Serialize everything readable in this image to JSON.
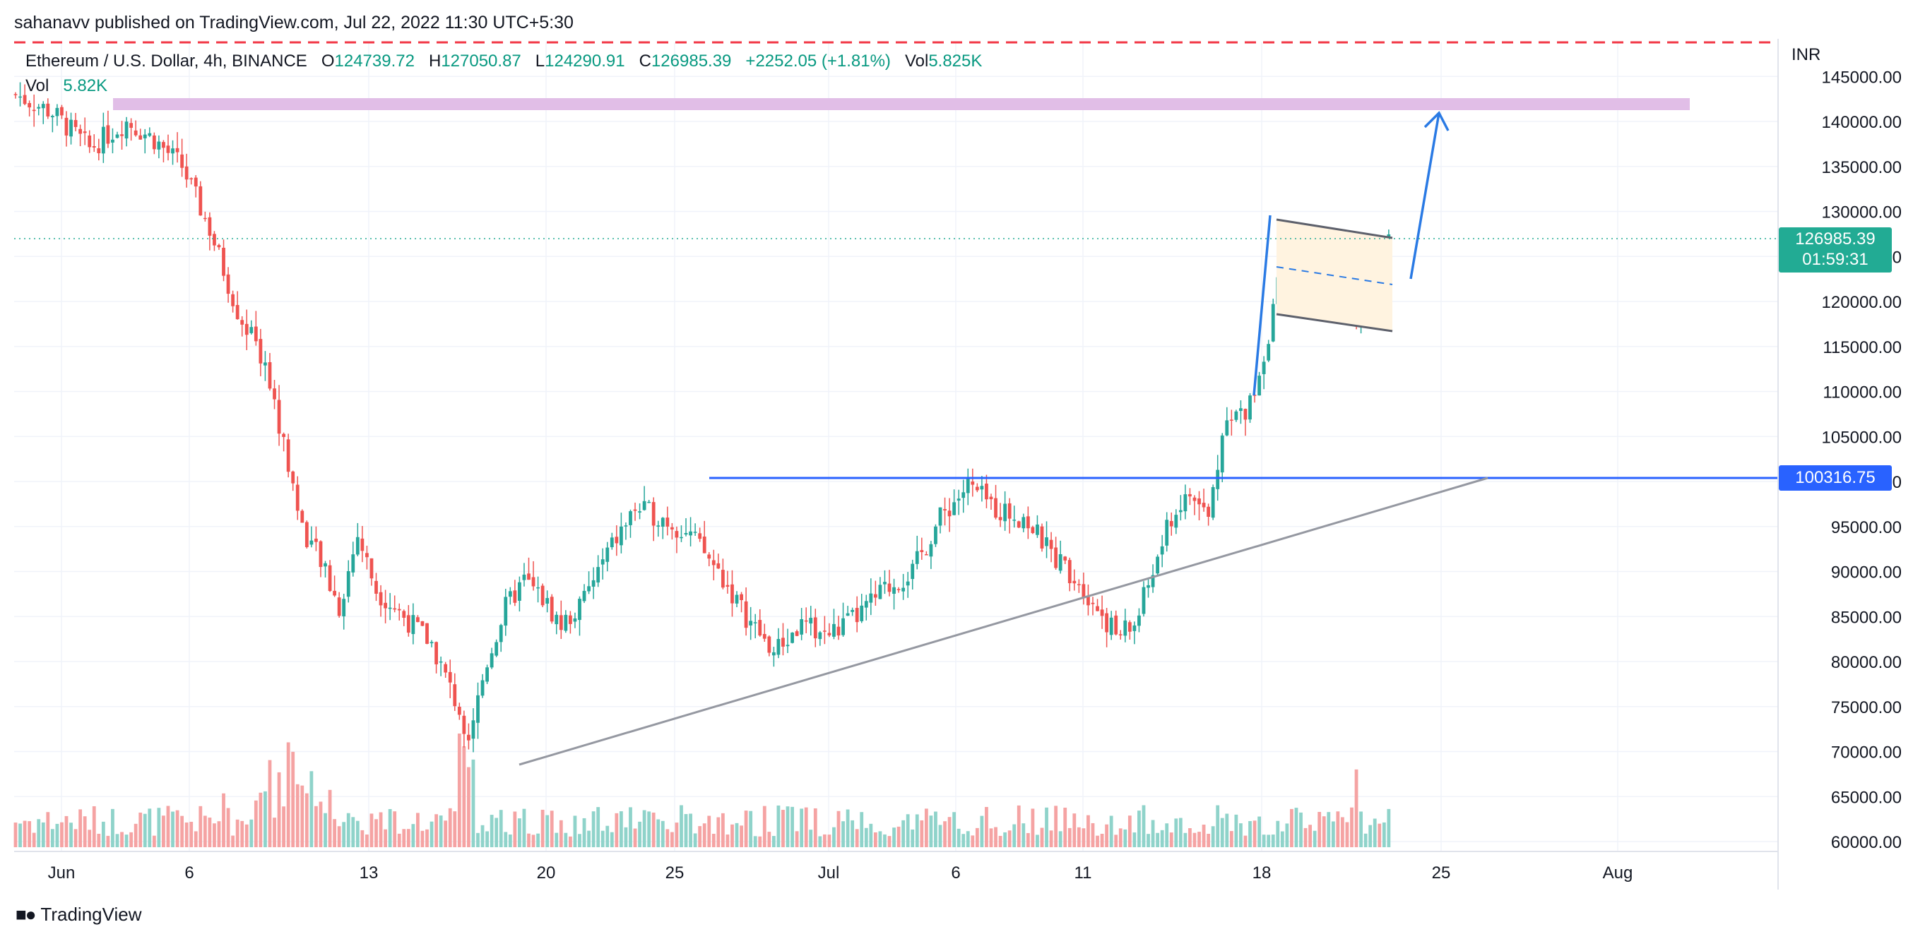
{
  "header": {
    "publisher": "sahanavv published on TradingView.com, Jul 22, 2022 11:30 UTC+5:30"
  },
  "legend": {
    "symbol": "Ethereum / U.S. Dollar, 4h, BINANCE",
    "open_label": "O",
    "open": "124739.72",
    "high_label": "H",
    "high": "127050.87",
    "low_label": "L",
    "low": "124290.91",
    "close_label": "C",
    "close": "126985.39",
    "change": "+2252.05 (+1.81%)",
    "vol_label": "Vol",
    "vol": "5.825K",
    "vol_series_label": "Vol",
    "vol_series_value": "5.82K"
  },
  "price_axis": {
    "currency": "INR",
    "last_price": "126985.39",
    "countdown": "01:59:31",
    "level_price": "100316.75"
  },
  "brand": {
    "name": "TradingView",
    "logo_icon": "tradingview-logo-icon"
  },
  "colors": {
    "up": "#26a69a",
    "down": "#ef5350",
    "vol_up": "#8fd3ca",
    "vol_down": "#f5a3a3",
    "level": "#2962ff",
    "trend": "#9598a1",
    "resistance_dashed": "#f23645",
    "zone": "#e1bee7",
    "flag": "#fff3e0",
    "arrow": "#2a7ae4"
  },
  "chart_data": {
    "type": "candlestick",
    "title": "Ethereum / U.S. Dollar, 4h, BINANCE",
    "xlabel": "",
    "ylabel": "",
    "ylim": [
      60000,
      147000
    ],
    "grid": true,
    "x_ticks": [
      "Jun",
      "6",
      "13",
      "20",
      "25",
      "Jul",
      "6",
      "11",
      "18",
      "25",
      "Aug"
    ],
    "y_ticks": [
      "145000.00",
      "140000.00",
      "135000.00",
      "130000.00",
      "125000.00",
      "120000.00",
      "115000.00",
      "110000.00",
      "105000.00",
      "100000.00",
      "95000.00",
      "90000.00",
      "85000.00",
      "80000.00",
      "75000.00",
      "70000.00",
      "65000.00",
      "60000.00"
    ],
    "price_path": [
      [
        0,
        143000
      ],
      [
        8,
        141000
      ],
      [
        16,
        137000
      ],
      [
        24,
        140000
      ],
      [
        30,
        138000
      ],
      [
        36,
        135000
      ],
      [
        42,
        128000
      ],
      [
        48,
        119000
      ],
      [
        54,
        113000
      ],
      [
        58,
        104000
      ],
      [
        62,
        95000
      ],
      [
        66,
        91000
      ],
      [
        70,
        86000
      ],
      [
        74,
        94000
      ],
      [
        78,
        88000
      ],
      [
        82,
        86000
      ],
      [
        86,
        84000
      ],
      [
        90,
        82000
      ],
      [
        94,
        77000
      ],
      [
        98,
        72000
      ],
      [
        102,
        80000
      ],
      [
        106,
        86000
      ],
      [
        110,
        89000
      ],
      [
        114,
        87000
      ],
      [
        118,
        84000
      ],
      [
        122,
        86000
      ],
      [
        128,
        92000
      ],
      [
        134,
        97000
      ],
      [
        140,
        96000
      ],
      [
        146,
        94000
      ],
      [
        152,
        90000
      ],
      [
        158,
        85000
      ],
      [
        164,
        81000
      ],
      [
        170,
        84000
      ],
      [
        176,
        83000
      ],
      [
        182,
        85000
      ],
      [
        188,
        88000
      ],
      [
        194,
        90000
      ],
      [
        200,
        96000
      ],
      [
        206,
        99500
      ],
      [
        212,
        97000
      ],
      [
        218,
        96000
      ],
      [
        224,
        92000
      ],
      [
        230,
        89000
      ],
      [
        234,
        86000
      ],
      [
        238,
        83000
      ],
      [
        242,
        84000
      ],
      [
        246,
        90000
      ],
      [
        250,
        96000
      ],
      [
        254,
        98500
      ],
      [
        258,
        96000
      ],
      [
        262,
        108000
      ],
      [
        266,
        107000
      ],
      [
        270,
        114000
      ],
      [
        274,
        124000
      ],
      [
        278,
        126000
      ],
      [
        282,
        123000
      ],
      [
        286,
        126000
      ],
      [
        290,
        119000
      ],
      [
        294,
        124000
      ],
      [
        297,
        126985
      ]
    ],
    "annotations": [
      {
        "type": "horizontal_line",
        "label": "resistance",
        "y": 147000
      },
      {
        "type": "horizontal_line",
        "label": "breakout level",
        "y": 100316.75
      },
      {
        "type": "zone",
        "label": "target zone",
        "y_range": [
          140600,
          142200
        ]
      },
      {
        "type": "trendline",
        "label": "rising support",
        "from": [
          101,
          68500
        ],
        "to": [
          306,
          100400
        ]
      },
      {
        "type": "bull_flag",
        "upper": [
          [
            276,
            129500
          ],
          [
            306,
            127200
          ]
        ],
        "lower": [
          [
            276,
            119800
          ],
          [
            306,
            116800
          ]
        ]
      },
      {
        "type": "arrow",
        "label": "projected move",
        "from": [
          308,
          122500
        ],
        "to": [
          314,
          141000
        ]
      }
    ],
    "volume": {
      "ylim": [
        0,
        40000
      ],
      "unit": "ETH"
    }
  }
}
